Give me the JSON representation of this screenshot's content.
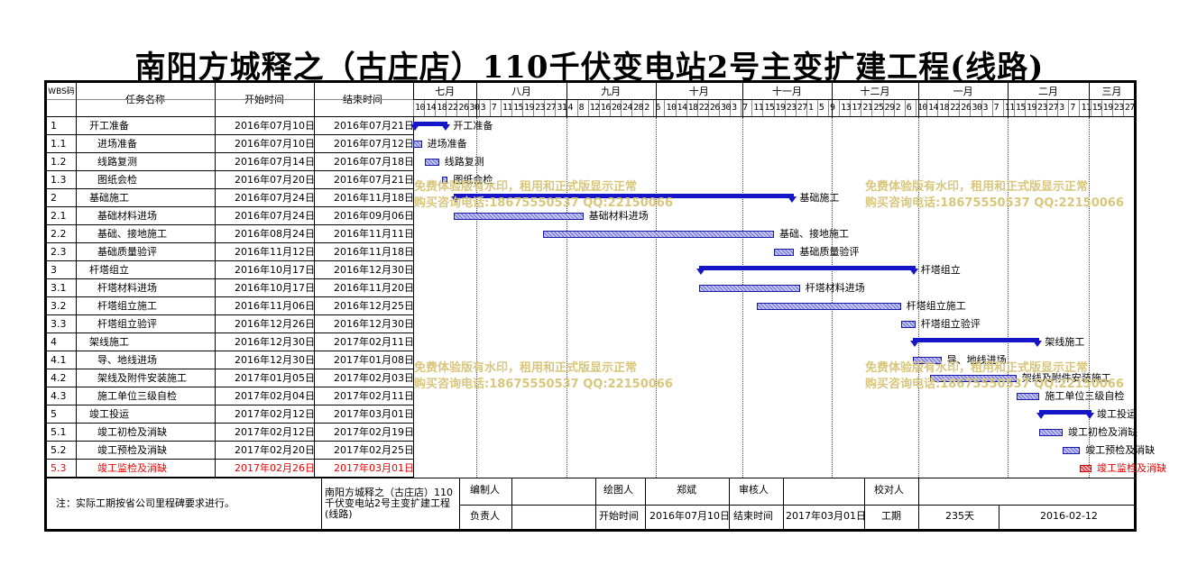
{
  "title": "南阳方城释之（古庄店）110千伏变电站2号主变扩建工程(线路)",
  "header": {
    "wbs": "WBS码",
    "name": "任务名称",
    "start": "开始时间",
    "end": "结束时间"
  },
  "timescale": {
    "months": [
      "七月",
      "八月",
      "九月",
      "十月",
      "十一月",
      "十二月",
      "一月",
      "二月",
      "三月"
    ],
    "days": [
      "10",
      "14",
      "18",
      "22",
      "26",
      "30",
      "3",
      "7",
      "11",
      "15",
      "19",
      "23",
      "27",
      "31",
      "4",
      "8",
      "12",
      "16",
      "20",
      "24",
      "28",
      "2",
      "6",
      "10",
      "14",
      "18",
      "22",
      "26",
      "30",
      "3",
      "7",
      "11",
      "15",
      "19",
      "23",
      "27",
      "1",
      "5",
      "9",
      "13",
      "17",
      "21",
      "25",
      "29",
      "2",
      "6",
      "10",
      "14",
      "18",
      "22",
      "26",
      "30",
      "3",
      "7",
      "11",
      "15",
      "19",
      "23",
      "27",
      "3",
      "7",
      "11",
      "15",
      "19",
      "23",
      "27"
    ]
  },
  "tasks": [
    {
      "wbs": "1",
      "name": "开工准备",
      "start": "2016年07月10日",
      "end": "2016年07月21日",
      "label": "开工准备",
      "summary": true,
      "indent": 0
    },
    {
      "wbs": "1.1",
      "name": "进场准备",
      "start": "2016年07月10日",
      "end": "2016年07月12日",
      "label": "进场准备",
      "summary": false,
      "indent": 1
    },
    {
      "wbs": "1.2",
      "name": "线路复测",
      "start": "2016年07月14日",
      "end": "2016年07月18日",
      "label": "线路复测",
      "summary": false,
      "indent": 1
    },
    {
      "wbs": "1.3",
      "name": "图纸会检",
      "start": "2016年07月20日",
      "end": "2016年07月21日",
      "label": "图纸会检",
      "summary": false,
      "indent": 1
    },
    {
      "wbs": "2",
      "name": "基础施工",
      "start": "2016年07月24日",
      "end": "2016年11月18日",
      "label": "基础施工",
      "summary": true,
      "indent": 0
    },
    {
      "wbs": "2.1",
      "name": "基础材料进场",
      "start": "2016年07月24日",
      "end": "2016年09月06日",
      "label": "基础材料进场",
      "summary": false,
      "indent": 1
    },
    {
      "wbs": "2.2",
      "name": "基础、接地施工",
      "start": "2016年08月24日",
      "end": "2016年11月11日",
      "label": "基础、接地施工",
      "summary": false,
      "indent": 1
    },
    {
      "wbs": "2.3",
      "name": "基础质量验评",
      "start": "2016年11月12日",
      "end": "2016年11月18日",
      "label": "基础质量验评",
      "summary": false,
      "indent": 1
    },
    {
      "wbs": "3",
      "name": "杆塔组立",
      "start": "2016年10月17日",
      "end": "2016年12月30日",
      "label": "杆塔组立",
      "summary": true,
      "indent": 0
    },
    {
      "wbs": "3.1",
      "name": "杆塔材料进场",
      "start": "2016年10月17日",
      "end": "2016年11月20日",
      "label": "杆塔材料进场",
      "summary": false,
      "indent": 1
    },
    {
      "wbs": "3.2",
      "name": "杆塔组立施工",
      "start": "2016年11月06日",
      "end": "2016年12月25日",
      "label": "杆塔组立施工",
      "summary": false,
      "indent": 1
    },
    {
      "wbs": "3.3",
      "name": "杆塔组立验评",
      "start": "2016年12月26日",
      "end": "2016年12月30日",
      "label": "杆塔组立验评",
      "summary": false,
      "indent": 1
    },
    {
      "wbs": "4",
      "name": "架线施工",
      "start": "2016年12月30日",
      "end": "2017年02月11日",
      "label": "架线施工",
      "summary": true,
      "indent": 0
    },
    {
      "wbs": "4.1",
      "name": "导、地线进场",
      "start": "2016年12月30日",
      "end": "2017年01月08日",
      "label": "导、地线进场",
      "summary": false,
      "indent": 1
    },
    {
      "wbs": "4.2",
      "name": "架线及附件安装施工",
      "start": "2017年01月05日",
      "end": "2017年02月03日",
      "label": "架线及附件安装施工",
      "summary": false,
      "indent": 1
    },
    {
      "wbs": "4.3",
      "name": "施工单位三级自检",
      "start": "2017年02月04日",
      "end": "2017年02月11日",
      "label": "施工单位三级自检",
      "summary": false,
      "indent": 1
    },
    {
      "wbs": "5",
      "name": "竣工投运",
      "start": "2017年02月12日",
      "end": "2017年03月01日",
      "label": "竣工投运",
      "summary": true,
      "indent": 0
    },
    {
      "wbs": "5.1",
      "name": "竣工初检及消缺",
      "start": "2017年02月12日",
      "end": "2017年02月19日",
      "label": "竣工初检及消缺",
      "summary": false,
      "indent": 1
    },
    {
      "wbs": "5.2",
      "name": "竣工预检及消缺",
      "start": "2017年02月20日",
      "end": "2017年02月25日",
      "label": "竣工预检及消缺",
      "summary": false,
      "indent": 1
    },
    {
      "wbs": "5.3",
      "name": "竣工监检及消缺",
      "start": "2017年02月26日",
      "end": "2017年03月01日",
      "label": "竣工监检及消缺",
      "summary": false,
      "indent": 1,
      "critical": true
    }
  ],
  "schedule": [
    {
      "row": 0,
      "s": 0,
      "e": 11
    },
    {
      "row": 1,
      "s": 0,
      "e": 2
    },
    {
      "row": 2,
      "s": 4,
      "e": 8
    },
    {
      "row": 3,
      "s": 10,
      "e": 11
    },
    {
      "row": 4,
      "s": 14,
      "e": 131
    },
    {
      "row": 5,
      "s": 14,
      "e": 58
    },
    {
      "row": 6,
      "s": 45,
      "e": 124
    },
    {
      "row": 7,
      "s": 125,
      "e": 131
    },
    {
      "row": 8,
      "s": 99,
      "e": 173
    },
    {
      "row": 9,
      "s": 99,
      "e": 133
    },
    {
      "row": 10,
      "s": 119,
      "e": 168
    },
    {
      "row": 11,
      "s": 169,
      "e": 173
    },
    {
      "row": 12,
      "s": 173,
      "e": 216
    },
    {
      "row": 13,
      "s": 173,
      "e": 182
    },
    {
      "row": 14,
      "s": 179,
      "e": 208
    },
    {
      "row": 15,
      "s": 209,
      "e": 216
    },
    {
      "row": 16,
      "s": 217,
      "e": 234
    },
    {
      "row": 17,
      "s": 217,
      "e": 224
    },
    {
      "row": 18,
      "s": 225,
      "e": 230
    },
    {
      "row": 19,
      "s": 231,
      "e": 234
    }
  ],
  "watermark": {
    "line1": "免费体验版有水印，租用和正式版显示正常",
    "line2": "购买咨询电话:18675550537 QQ:22150066"
  },
  "footer": {
    "note": "注：实际工期按省公司里程碑要求进行。",
    "project": "南阳方城释之（古庄店）110千伏变电站2号主变扩建工程(线路)",
    "editor_label": "编制人",
    "drawer_label": "绘图人",
    "drawer": "郑斌",
    "reviewer_label": "审核人",
    "checker_label": "校对人",
    "owner_label": "负责人",
    "start_label": "开始时间",
    "start": "2016年07月10日",
    "end_label": "结束时间",
    "end": "2017年03月01日",
    "duration_label": "工期",
    "duration": "235天",
    "date": "2016-02-12"
  },
  "colors": {
    "bar": "#1414c8",
    "critical": "#e02020",
    "watermark": "#d8c77c"
  }
}
